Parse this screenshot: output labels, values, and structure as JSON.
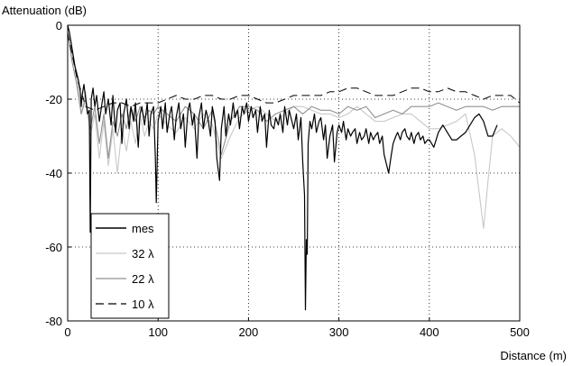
{
  "chart_data": {
    "type": "line",
    "ylabel": "Attenuation (dB)",
    "xlabel": "Distance (m)",
    "xlim": [
      0,
      500
    ],
    "ylim": [
      -80,
      0
    ],
    "x_ticks": [
      0,
      100,
      200,
      300,
      400,
      500
    ],
    "y_ticks": [
      0,
      -20,
      -40,
      -60,
      -80
    ],
    "grid": true,
    "grid_style": "dotted",
    "legend_position": "bottom-left",
    "legend_symbol": "λ",
    "series": [
      {
        "name": "mes",
        "color": "#000000",
        "dash": "none",
        "width": 1.2,
        "x": [
          0,
          2,
          4,
          6,
          8,
          10,
          12,
          14,
          15,
          16,
          18,
          20,
          22,
          24,
          25,
          26,
          28,
          30,
          32,
          35,
          38,
          40,
          42,
          45,
          48,
          50,
          53,
          55,
          58,
          60,
          62,
          65,
          68,
          70,
          73,
          75,
          78,
          80,
          82,
          85,
          88,
          90,
          92,
          95,
          97,
          98,
          100,
          103,
          105,
          108,
          110,
          113,
          115,
          118,
          120,
          123,
          125,
          128,
          130,
          133,
          135,
          138,
          140,
          143,
          145,
          148,
          150,
          153,
          155,
          158,
          160,
          163,
          165,
          168,
          170,
          173,
          175,
          178,
          180,
          183,
          185,
          188,
          190,
          193,
          195,
          198,
          200,
          203,
          205,
          208,
          210,
          213,
          215,
          218,
          220,
          223,
          225,
          228,
          230,
          233,
          235,
          238,
          240,
          243,
          245,
          248,
          250,
          253,
          255,
          258,
          260,
          262,
          263,
          264,
          265,
          266,
          268,
          270,
          273,
          275,
          278,
          280,
          283,
          285,
          287,
          290,
          293,
          295,
          298,
          300,
          303,
          305,
          308,
          310,
          313,
          315,
          318,
          320,
          323,
          325,
          328,
          330,
          333,
          335,
          338,
          340,
          343,
          345,
          348,
          350,
          353,
          355,
          358,
          360,
          363,
          365,
          368,
          370,
          373,
          375,
          378,
          380,
          383,
          385,
          388,
          390,
          393,
          395,
          398,
          400,
          405,
          410,
          415,
          420,
          425,
          430,
          435,
          440,
          445,
          450,
          455,
          460,
          465,
          470,
          475
        ],
        "y": [
          0,
          -2,
          -5,
          -8,
          -11,
          -13,
          -15,
          -18,
          -22,
          -19,
          -16,
          -20,
          -24,
          -23,
          -56,
          -20,
          -17,
          -22,
          -19,
          -26,
          -21,
          -18,
          -24,
          -20,
          -27,
          -19,
          -29,
          -23,
          -21,
          -32,
          -24,
          -20,
          -28,
          -22,
          -26,
          -21,
          -33,
          -24,
          -22,
          -27,
          -21,
          -30,
          -24,
          -22,
          -36,
          -48,
          -26,
          -22,
          -28,
          -21,
          -29,
          -24,
          -22,
          -31,
          -25,
          -21,
          -28,
          -24,
          -33,
          -23,
          -21,
          -27,
          -24,
          -36,
          -25,
          -21,
          -28,
          -23,
          -25,
          -30,
          -22,
          -26,
          -36,
          -42,
          -28,
          -22,
          -30,
          -24,
          -27,
          -21,
          -25,
          -23,
          -28,
          -22,
          -24,
          -21,
          -26,
          -22,
          -25,
          -23,
          -29,
          -22,
          -26,
          -24,
          -33,
          -23,
          -27,
          -28,
          -25,
          -27,
          -24,
          -29,
          -22,
          -27,
          -23,
          -26,
          -28,
          -24,
          -31,
          -25,
          -37,
          -46,
          -77,
          -58,
          -62,
          -32,
          -26,
          -28,
          -24,
          -29,
          -26,
          -25,
          -31,
          -27,
          -36,
          -30,
          -27,
          -37,
          -29,
          -27,
          -29,
          -26,
          -31,
          -28,
          -30,
          -29,
          -28,
          -32,
          -29,
          -31,
          -30,
          -28,
          -32,
          -29,
          -31,
          -30,
          -29,
          -32,
          -30,
          -35,
          -38,
          -40,
          -35,
          -32,
          -30,
          -29,
          -31,
          -29,
          -28,
          -30,
          -31,
          -29,
          -32,
          -30,
          -29,
          -31,
          -30,
          -32,
          -31,
          -31,
          -33,
          -29,
          -27,
          -29,
          -31,
          -31,
          -30,
          -29,
          -27,
          -25,
          -24,
          -26,
          -30,
          -30,
          -27
        ]
      },
      {
        "name": "32 λ",
        "color": "#c8c8c8",
        "dash": "none",
        "width": 1.1,
        "x": [
          0,
          5,
          10,
          15,
          20,
          25,
          30,
          35,
          40,
          45,
          50,
          55,
          60,
          65,
          70,
          75,
          80,
          85,
          90,
          95,
          100,
          110,
          120,
          130,
          140,
          150,
          160,
          170,
          180,
          190,
          200,
          210,
          220,
          230,
          240,
          250,
          260,
          270,
          280,
          290,
          300,
          310,
          320,
          330,
          340,
          350,
          360,
          370,
          380,
          390,
          400,
          410,
          420,
          430,
          440,
          450,
          455,
          460,
          465,
          470,
          480,
          490,
          500
        ],
        "y": [
          -2,
          -8,
          -14,
          -24,
          -18,
          -30,
          -24,
          -36,
          -26,
          -38,
          -28,
          -40,
          -28,
          -34,
          -26,
          -32,
          -24,
          -30,
          -26,
          -28,
          -24,
          -27,
          -29,
          -25,
          -28,
          -24,
          -27,
          -36,
          -30,
          -25,
          -23,
          -22,
          -24,
          -26,
          -24,
          -22,
          -22,
          -23,
          -24,
          -24,
          -25,
          -24,
          -22,
          -24,
          -26,
          -26,
          -25,
          -24,
          -24,
          -26,
          -28,
          -28,
          -27,
          -26,
          -24,
          -35,
          -45,
          -55,
          -42,
          -30,
          -28,
          -30,
          -33
        ]
      },
      {
        "name": "22 λ",
        "color": "#909090",
        "dash": "none",
        "width": 1.1,
        "x": [
          0,
          5,
          10,
          15,
          20,
          25,
          30,
          35,
          40,
          45,
          50,
          55,
          60,
          65,
          70,
          75,
          80,
          85,
          90,
          95,
          100,
          110,
          120,
          130,
          140,
          150,
          160,
          170,
          180,
          190,
          200,
          210,
          220,
          230,
          240,
          250,
          260,
          270,
          280,
          290,
          300,
          310,
          320,
          330,
          340,
          350,
          360,
          370,
          380,
          390,
          400,
          410,
          420,
          430,
          440,
          450,
          460,
          470,
          480,
          490,
          500
        ],
        "y": [
          -2,
          -10,
          -16,
          -24,
          -20,
          -28,
          -22,
          -32,
          -24,
          -36,
          -26,
          -30,
          -24,
          -28,
          -22,
          -26,
          -22,
          -25,
          -23,
          -24,
          -22,
          -24,
          -26,
          -22,
          -24,
          -28,
          -23,
          -35,
          -26,
          -22,
          -22,
          -23,
          -26,
          -24,
          -23,
          -22,
          -24,
          -22,
          -23,
          -23,
          -24,
          -22,
          -23,
          -22,
          -25,
          -24,
          -23,
          -24,
          -22,
          -22,
          -22,
          -21,
          -22,
          -23,
          -22,
          -22,
          -22,
          -23,
          -22,
          -22,
          -22
        ]
      },
      {
        "name": "10 λ",
        "color": "#000000",
        "dash": "9,5",
        "width": 1.0,
        "x": [
          0,
          10,
          20,
          30,
          40,
          50,
          60,
          70,
          80,
          90,
          100,
          110,
          120,
          130,
          140,
          150,
          160,
          170,
          180,
          190,
          200,
          210,
          220,
          230,
          240,
          250,
          260,
          270,
          280,
          290,
          300,
          310,
          320,
          330,
          340,
          350,
          360,
          370,
          380,
          390,
          400,
          410,
          420,
          430,
          440,
          450,
          460,
          470,
          480,
          490,
          500
        ],
        "y": [
          -2,
          -14,
          -22,
          -23,
          -22,
          -21,
          -21,
          -22,
          -21,
          -21,
          -21,
          -20,
          -19,
          -20,
          -20,
          -19,
          -19,
          -20,
          -20,
          -19,
          -19,
          -20,
          -21,
          -21,
          -20,
          -19,
          -19,
          -19,
          -19,
          -18,
          -18,
          -17,
          -17,
          -18,
          -19,
          -19,
          -19,
          -18,
          -17,
          -17,
          -18,
          -18,
          -17,
          -18,
          -18,
          -19,
          -20,
          -19,
          -19,
          -19,
          -21
        ]
      }
    ]
  }
}
